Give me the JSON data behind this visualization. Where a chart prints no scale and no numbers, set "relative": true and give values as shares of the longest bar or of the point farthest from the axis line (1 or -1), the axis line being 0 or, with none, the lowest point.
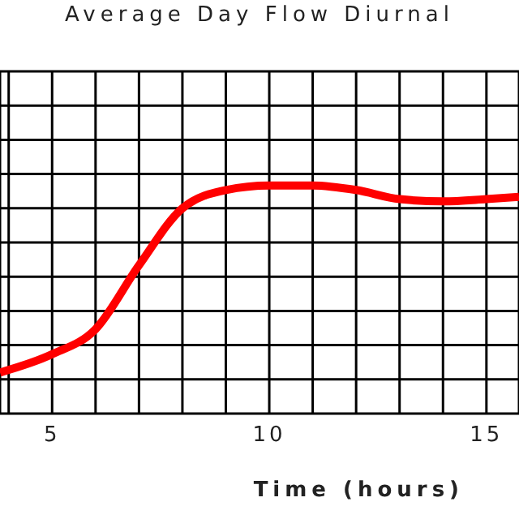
{
  "chart_data": {
    "type": "line",
    "title": "Average Day Flow Diurnal",
    "xlabel": "Time (hours)",
    "relative": true,
    "x": [
      3.8,
      5,
      6,
      7,
      8,
      9,
      10,
      11,
      12,
      13,
      14,
      15,
      15.75
    ],
    "series": [
      {
        "color": "#ff0000",
        "values": [
          0.18,
          0.26,
          0.37,
          0.65,
          0.9,
          0.98,
          1,
          1,
          0.98,
          0.94,
          0.93,
          0.94,
          0.95
        ]
      }
    ],
    "xlim": [
      3.8,
      15.75
    ],
    "xticks": [
      {
        "value": 4,
        "label": null
      },
      5,
      {
        "value": 6,
        "label": null
      },
      {
        "value": 7,
        "label": null
      },
      {
        "value": 8,
        "label": null
      },
      {
        "value": 9,
        "label": null
      },
      10,
      {
        "value": 11,
        "label": null
      },
      {
        "value": 12,
        "label": null
      },
      {
        "value": 13,
        "label": null
      },
      {
        "value": 14,
        "label": null
      },
      15
    ],
    "grid": true,
    "marker": "none",
    "line_style": "solid"
  }
}
